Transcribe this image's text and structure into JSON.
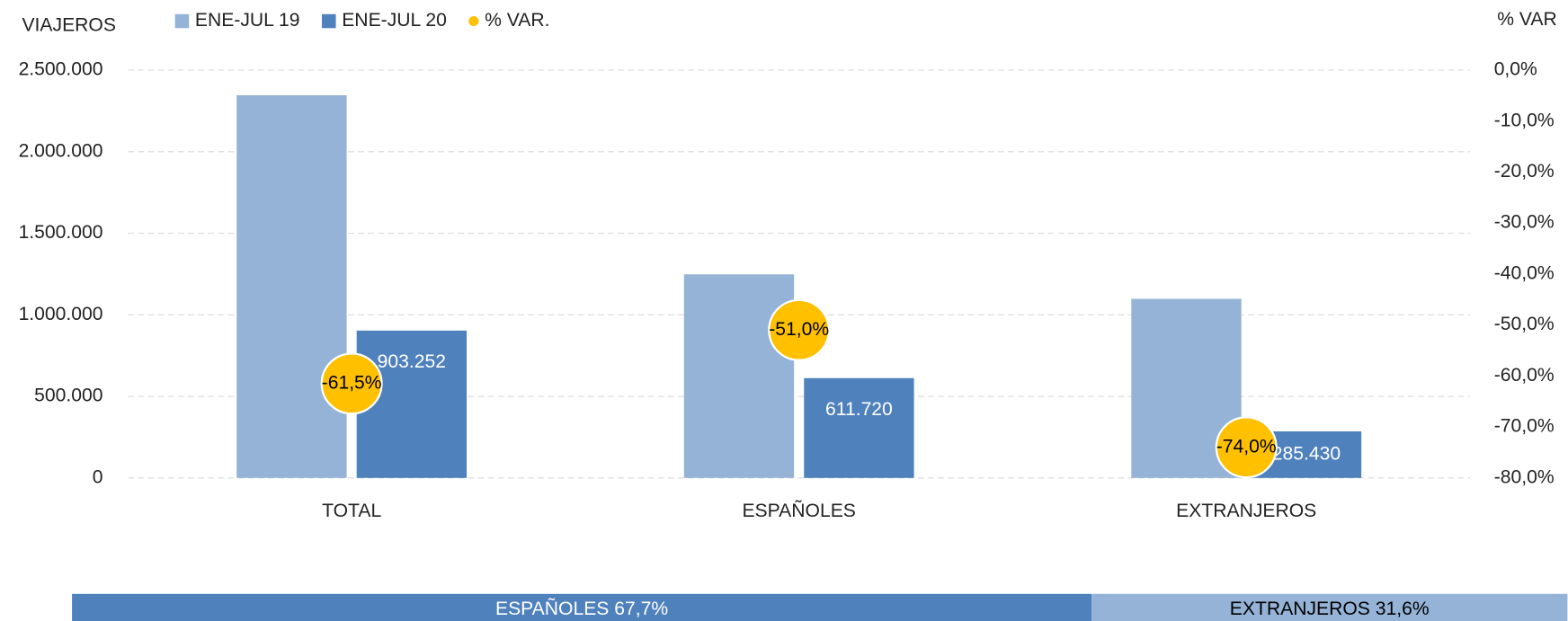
{
  "chart_data": [
    {
      "type": "bar",
      "y_label": "VIAJEROS",
      "y2_label": "% VAR",
      "categories": [
        "TOTAL",
        "ESPAÑOLES",
        "EXTRANJEROS"
      ],
      "series": [
        {
          "name": "ENE-JUL 19",
          "color": "#95b3d7",
          "values": [
            2346000,
            1248000,
            1098000
          ]
        },
        {
          "name": "ENE-JUL 20",
          "color": "#4f81bd",
          "values": [
            903252,
            611720,
            285430
          ],
          "value_labels": [
            "903.252",
            "611.720",
            "285.430"
          ]
        },
        {
          "name": "% VAR.",
          "color": "#ffc000",
          "axis": "y2",
          "values": [
            -61.5,
            -51.0,
            -74.0
          ],
          "value_labels": [
            "-61,5%",
            "-51,0%",
            "-74,0%"
          ]
        }
      ],
      "ylim": [
        0,
        2500000
      ],
      "yticks": [
        0,
        {
          "value": 500000,
          "label": "500.000"
        },
        {
          "value": 1000000,
          "label": "1.000.000"
        },
        {
          "value": 1500000,
          "label": "1.500.000"
        },
        {
          "value": 2000000,
          "label": "2.000.000"
        },
        {
          "value": 2500000,
          "label": "2.500.000"
        }
      ],
      "y2lim": [
        -80,
        0
      ],
      "y2ticks": [
        {
          "value": 0,
          "label": "0,0%"
        },
        {
          "value": -10,
          "label": "-10,0%"
        },
        {
          "value": -20,
          "label": "-20,0%"
        },
        {
          "value": -30,
          "label": "-30,0%"
        },
        {
          "value": -40,
          "label": "-40,0%"
        },
        {
          "value": -50,
          "label": "-50,0%"
        },
        {
          "value": -60,
          "label": "-60,0%"
        },
        {
          "value": -70,
          "label": "-70,0%"
        },
        {
          "value": -80,
          "label": "-80,0%"
        }
      ],
      "grid": true,
      "legend": "top"
    },
    {
      "type": "share_bar",
      "segments": [
        {
          "label": "ESPAÑOLES 67,7%",
          "value": 67.7,
          "color": "#4f81bd",
          "text_color": "#ffffff"
        },
        {
          "label": "EXTRANJEROS 31,6%",
          "value": 31.6,
          "color": "#95b3d7",
          "text_color": "#000000"
        }
      ]
    }
  ]
}
